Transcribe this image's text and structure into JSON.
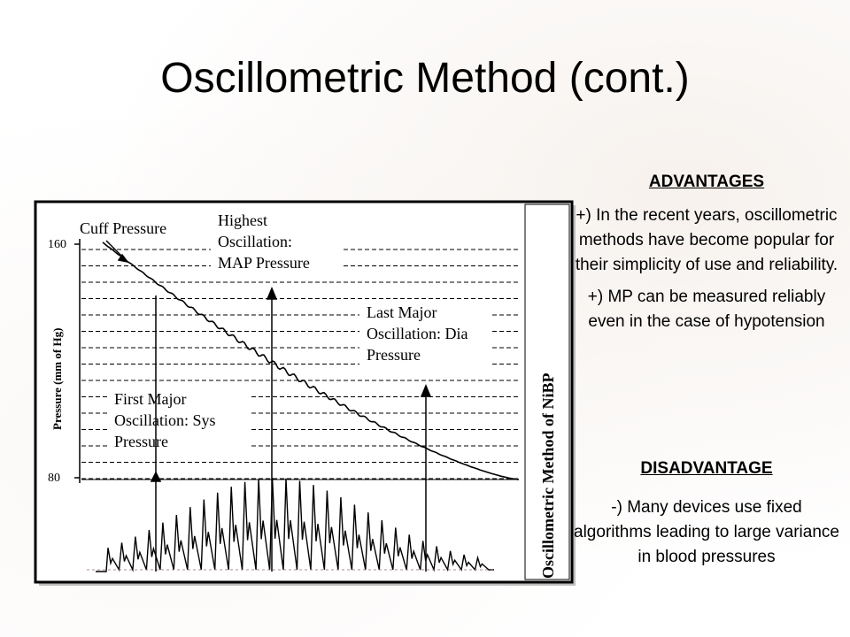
{
  "slide": {
    "title": "Oscillometric Method (cont.)"
  },
  "figure": {
    "y_axis_label": "Pressure (mm of Hg)",
    "y_tick_high": "160",
    "y_tick_low": "80",
    "side_caption": "Oscillometric Method of NiBP",
    "annotations": {
      "cuff_pressure": "Cuff Pressure",
      "highest_osc": [
        "Highest",
        "Oscillation:",
        "MAP Pressure"
      ],
      "last_major": [
        "Last Major",
        "Oscillation: Dia",
        "Pressure"
      ],
      "first_major": [
        "First Major",
        "Oscillation: Sys",
        "Pressure"
      ]
    }
  },
  "advantages": {
    "heading": "ADVANTAGES",
    "items": [
      "+) In the recent years, oscillometric methods have become popular for their simplicity of use and reliability.",
      "+) MP can be measured reliably even in the case of hypotension"
    ]
  },
  "disadvantages": {
    "heading": "DISADVANTAGE",
    "items": [
      "-) Many devices use fixed algorithms leading to large variance in blood pressures"
    ]
  }
}
